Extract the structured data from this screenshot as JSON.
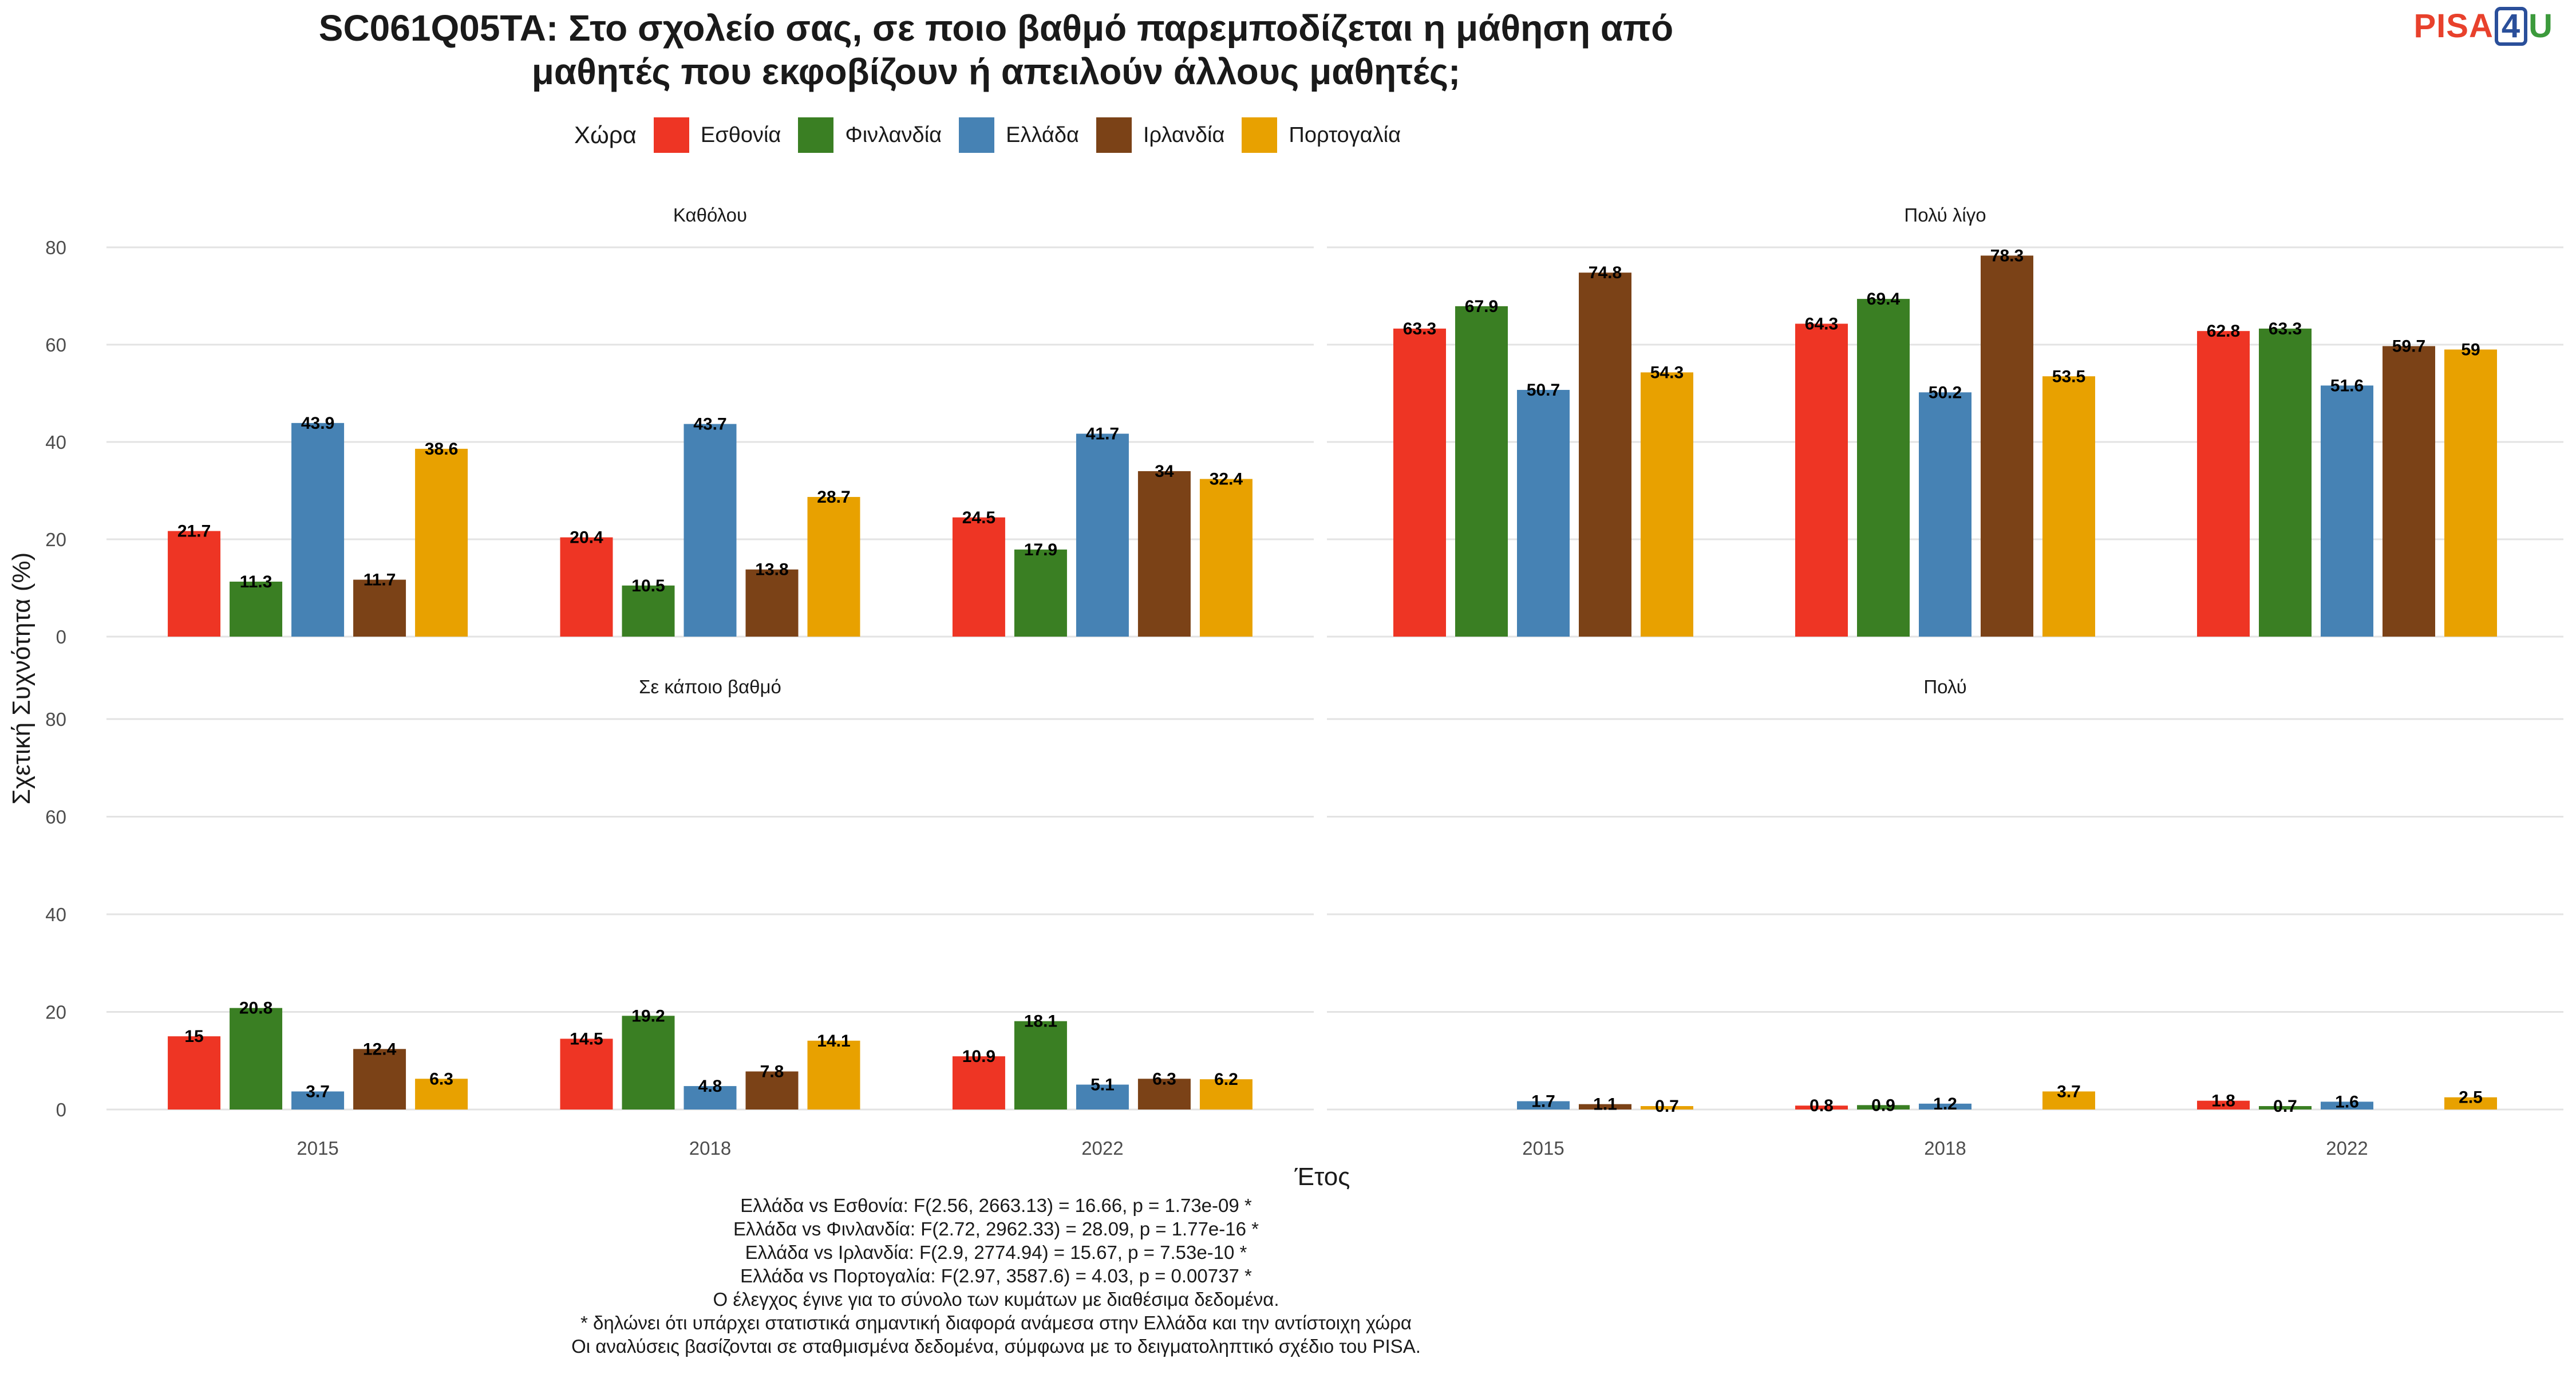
{
  "title_lines": [
    "SC061Q05TA: Στο σχολείο σας, σε ποιο βαθμό παρεμποδίζεται η μάθηση από",
    "μαθητές που εκφοβίζουν ή απειλούν άλλους μαθητές;"
  ],
  "logo": {
    "part1": "PISA",
    "part2": "4",
    "part3": "U"
  },
  "legend_title": "Χώρα",
  "notes": [
    "Ελλάδα vs Εσθονία: F(2.56, 2663.13) = 16.66, p = 1.73e-09 *",
    "Ελλάδα vs Φινλανδία: F(2.72, 2962.33) = 28.09, p = 1.77e-16 *",
    "Ελλάδα vs Ιρλανδία: F(2.9, 2774.94) = 15.67, p = 7.53e-10 *",
    "Ελλάδα vs Πορτογαλία: F(2.97, 3587.6) = 4.03, p = 0.00737 *",
    "Ο έλεγχος έγινε για το σύνολο των κυμάτων με διαθέσιμα δεδομένα.",
    "* δηλώνει ότι υπάρχει στατιστικά σημαντική διαφορά ανάμεσα στην Ελλάδα και την αντίστοιχη χώρα",
    "Οι αναλύσεις βασίζονται σε σταθμισμένα δεδομένα, σύμφωνα με το δειγματοληπτικό σχέδιο του PISA."
  ],
  "chart_data": {
    "type": "bar",
    "xlabel": "Έτος",
    "ylabel": "Σχετική Συχνότητα (%)",
    "ylim": [
      0,
      80
    ],
    "yticks": [
      0,
      20,
      40,
      60,
      80
    ],
    "grid": true,
    "legend_position": "top",
    "categories": [
      "2015",
      "2018",
      "2022"
    ],
    "series_names": [
      "Εσθονία",
      "Φινλανδία",
      "Ελλάδα",
      "Ιρλανδία",
      "Πορτογαλία"
    ],
    "colors": [
      "#ee3524",
      "#3a7f23",
      "#4682b4",
      "#7b4217",
      "#e8a100"
    ],
    "panels": [
      {
        "title": "Καθόλου",
        "values": [
          [
            21.7,
            20.4,
            24.5
          ],
          [
            11.3,
            10.5,
            17.9
          ],
          [
            43.9,
            43.7,
            41.7
          ],
          [
            11.7,
            13.8,
            34
          ],
          [
            38.6,
            28.7,
            32.4
          ]
        ]
      },
      {
        "title": "Πολύ λίγο",
        "values": [
          [
            63.3,
            64.3,
            62.8
          ],
          [
            67.9,
            69.4,
            63.3
          ],
          [
            50.7,
            50.2,
            51.6
          ],
          [
            74.8,
            78.3,
            59.7
          ],
          [
            54.3,
            53.5,
            59
          ]
        ]
      },
      {
        "title": "Σε κάποιο βαθμό",
        "values": [
          [
            15,
            14.5,
            10.9
          ],
          [
            20.8,
            19.2,
            18.1
          ],
          [
            3.7,
            4.8,
            5.1
          ],
          [
            12.4,
            7.8,
            6.3
          ],
          [
            6.3,
            14.1,
            6.2
          ]
        ]
      },
      {
        "title": "Πολύ",
        "values": [
          [
            null,
            0.8,
            1.8
          ],
          [
            null,
            0.9,
            0.7
          ],
          [
            1.7,
            1.2,
            1.6
          ],
          [
            1.1,
            null,
            null
          ],
          [
            0.7,
            3.7,
            2.5
          ]
        ]
      }
    ]
  }
}
